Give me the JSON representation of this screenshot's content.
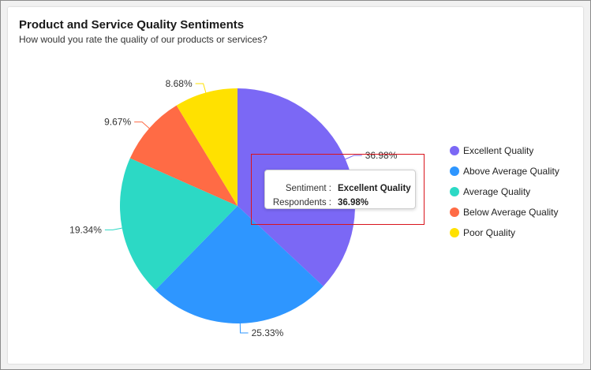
{
  "chart_data": {
    "type": "pie",
    "title": "Product and Service Quality Sentiments",
    "subtitle": "How would you rate the quality of our products or services?",
    "categories": [
      "Excellent Quality",
      "Above Average Quality",
      "Average Quality",
      "Below Average Quality",
      "Poor Quality"
    ],
    "values": [
      36.98,
      25.33,
      19.34,
      9.67,
      8.68
    ],
    "data_labels": [
      "36.98%",
      "25.33%",
      "19.34%",
      "9.67%",
      "8.68%"
    ],
    "colors": [
      "#7b68f5",
      "#2e96ff",
      "#2cd9c5",
      "#ff6b45",
      "#ffe100"
    ],
    "legend_position": "right"
  },
  "tooltip": {
    "key1": "Sentiment :",
    "value1": "Excellent Quality",
    "key2": "Respondents :",
    "value2": "36.98%"
  }
}
